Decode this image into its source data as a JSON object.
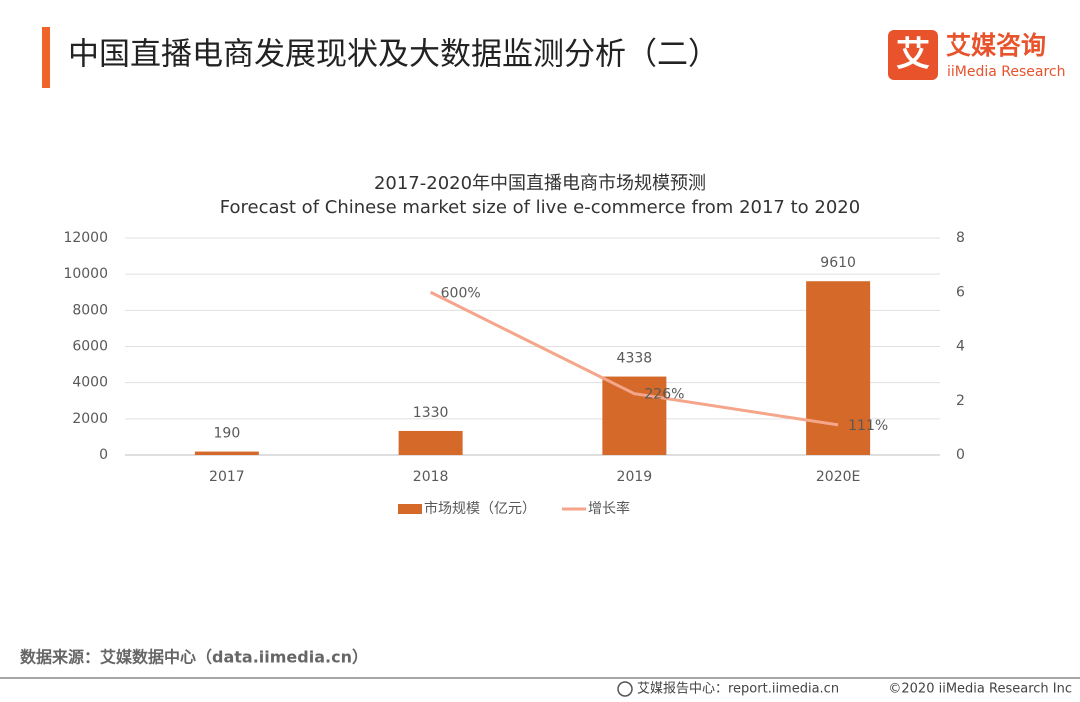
{
  "header": {
    "title": "中国直播电商发展现状及大数据监测分析（二）"
  },
  "logo": {
    "mark": "艾",
    "name": "艾媒咨询",
    "sub": "iiMedia Research"
  },
  "chart_data": {
    "type": "bar",
    "title": "2017-2020年中国直播电商市场规模预测",
    "subtitle": "Forecast of Chinese market size of live e-commerce from 2017 to 2020",
    "categories": [
      "2017",
      "2018",
      "2019",
      "2020E"
    ],
    "series": [
      {
        "name": "市场规模（亿元）",
        "color": "#d4692a",
        "type": "bar",
        "values": [
          190,
          1330,
          4338,
          9610
        ]
      },
      {
        "name": "增长率",
        "color": "#f4a58a",
        "type": "line",
        "axis": "y2",
        "values": [
          null,
          6,
          2.26,
          1.11
        ],
        "value_labels": [
          null,
          "600%",
          "226%",
          "111%"
        ]
      }
    ],
    "ylim": [
      0,
      12000
    ],
    "yticks": [
      0,
      2000,
      4000,
      6000,
      8000,
      10000,
      12000
    ],
    "y2lim": [
      0,
      8
    ],
    "y2ticks": [
      0,
      2,
      4,
      6,
      8
    ],
    "grid": true,
    "legend": "bottom"
  },
  "source": "数据来源：艾媒数据中心（data.iimedia.cn）",
  "footer": {
    "text": "艾媒报告中心：report.iimedia.cn",
    "copyright": "©2020  iiMedia Research  Inc"
  }
}
